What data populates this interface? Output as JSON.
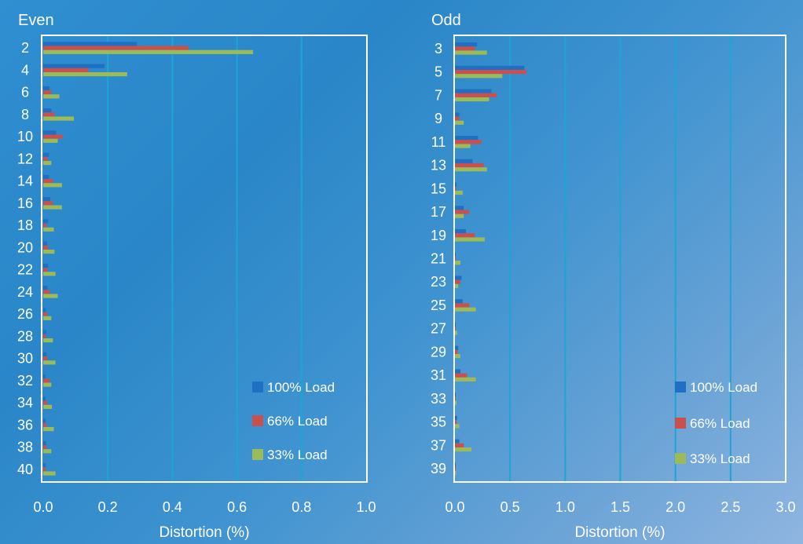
{
  "chart_data": [
    {
      "type": "bar",
      "orientation": "horizontal",
      "title": "Even",
      "xlabel": "Distortion (%)",
      "ylabel": "",
      "xlim": [
        0,
        1.0
      ],
      "x_ticks": [
        "0.0",
        "0.2",
        "0.4",
        "0.6",
        "0.8",
        "1.0"
      ],
      "categories": [
        "2",
        "4",
        "6",
        "8",
        "10",
        "12",
        "14",
        "16",
        "18",
        "20",
        "22",
        "24",
        "26",
        "28",
        "30",
        "32",
        "34",
        "36",
        "38",
        "40"
      ],
      "series": [
        {
          "name": "100% Load",
          "color": "#1f6fc2",
          "values": [
            0.29,
            0.19,
            0.02,
            0.025,
            0.04,
            0.018,
            0.018,
            0.022,
            0.015,
            0.012,
            0.015,
            0.013,
            0.008,
            0.01,
            0.01,
            0.007,
            0.007,
            0.007,
            0.009,
            0.008
          ]
        },
        {
          "name": "66% Load",
          "color": "#c9504d",
          "values": [
            0.45,
            0.14,
            0.025,
            0.035,
            0.06,
            0.013,
            0.03,
            0.03,
            0.01,
            0.015,
            0.013,
            0.02,
            0.012,
            0.008,
            0.012,
            0.02,
            0.012,
            0.01,
            0.01,
            0.008
          ]
        },
        {
          "name": "33% Load",
          "color": "#9bbb59",
          "values": [
            0.65,
            0.26,
            0.05,
            0.095,
            0.045,
            0.025,
            0.058,
            0.058,
            0.033,
            0.035,
            0.038,
            0.045,
            0.025,
            0.03,
            0.038,
            0.025,
            0.027,
            0.033,
            0.025,
            0.038
          ]
        }
      ],
      "grid": true,
      "legend": "bottom-right"
    },
    {
      "type": "bar",
      "orientation": "horizontal",
      "title": "Odd",
      "xlabel": "Distortion (%)",
      "ylabel": "",
      "xlim": [
        0,
        3.0
      ],
      "x_ticks": [
        "0.0",
        "0.5",
        "1.0",
        "1.5",
        "2.0",
        "2.5",
        "3.0"
      ],
      "categories": [
        "3",
        "5",
        "7",
        "9",
        "11",
        "13",
        "15",
        "17",
        "19",
        "21",
        "23",
        "25",
        "27",
        "29",
        "31",
        "33",
        "35",
        "37",
        "39"
      ],
      "series": [
        {
          "name": "100% Load",
          "color": "#1f6fc2",
          "values": [
            0.2,
            0.63,
            0.33,
            0.04,
            0.21,
            0.16,
            0.015,
            0.08,
            0.1,
            0.008,
            0.06,
            0.07,
            0.004,
            0.03,
            0.05,
            0.003,
            0.02,
            0.04,
            0.003
          ]
        },
        {
          "name": "66% Load",
          "color": "#c9504d",
          "values": [
            0.18,
            0.65,
            0.38,
            0.04,
            0.24,
            0.26,
            0.01,
            0.13,
            0.18,
            0.01,
            0.05,
            0.13,
            0.003,
            0.025,
            0.11,
            0.003,
            0.015,
            0.08,
            0.003
          ]
        },
        {
          "name": "33% Load",
          "color": "#9bbb59",
          "values": [
            0.29,
            0.43,
            0.31,
            0.08,
            0.14,
            0.29,
            0.07,
            0.08,
            0.27,
            0.05,
            0.03,
            0.19,
            0.02,
            0.05,
            0.19,
            0.015,
            0.04,
            0.15,
            0.01
          ]
        }
      ],
      "grid": true,
      "legend": "bottom-right"
    }
  ]
}
